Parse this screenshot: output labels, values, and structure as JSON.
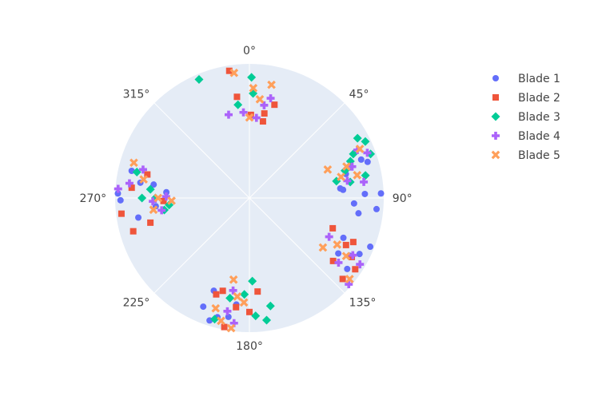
{
  "chart_data": {
    "type": "scatterpolar",
    "title": "",
    "angular_axis": {
      "direction": "clockwise",
      "rotation_deg": 90,
      "tick_labels": [
        "0°",
        "45°",
        "90°",
        "135°",
        "180°",
        "225°",
        "270°",
        "315°"
      ],
      "tick_values": [
        0,
        45,
        90,
        135,
        180,
        225,
        270,
        315
      ]
    },
    "radial_axis": {
      "range": [
        0,
        1
      ],
      "show_tick_labels": false
    },
    "grid": true,
    "legend_position": "top-right",
    "background_color": "#e5ecf6",
    "series": [
      {
        "name": "Blade 1",
        "symbol": "circle",
        "color": "#636efa",
        "points": [
          [
            0.88,
            71
          ],
          [
            0.92,
            73
          ],
          [
            0.74,
            76
          ],
          [
            0.7,
            85
          ],
          [
            0.86,
            88
          ],
          [
            0.98,
            88
          ],
          [
            0.78,
            93
          ],
          [
            0.95,
            95
          ],
          [
            0.82,
            98
          ],
          [
            0.68,
            84
          ],
          [
            0.78,
            73
          ],
          [
            0.92,
            117
          ],
          [
            0.97,
            112
          ],
          [
            0.78,
            122
          ],
          [
            0.9,
            126
          ],
          [
            0.76,
            113
          ],
          [
            0.86,
            120
          ],
          [
            0.92,
            195
          ],
          [
            0.9,
            190
          ],
          [
            0.74,
            201
          ],
          [
            0.8,
            187
          ],
          [
            0.96,
            198
          ],
          [
            0.88,
            203
          ],
          [
            0.96,
            269
          ],
          [
            0.98,
            272
          ],
          [
            0.72,
            278
          ],
          [
            0.82,
            278
          ],
          [
            0.62,
            274
          ],
          [
            0.7,
            265
          ],
          [
            0.9,
            283
          ],
          [
            0.84,
            260
          ]
        ]
      },
      {
        "name": "Blade 2",
        "symbol": "square",
        "color": "#ef553b",
        "points": [
          [
            0.96,
            351
          ],
          [
            0.64,
            10
          ],
          [
            0.76,
            353
          ],
          [
            0.72,
            15
          ],
          [
            0.62,
            1
          ],
          [
            0.58,
            10
          ],
          [
            0.84,
            113
          ],
          [
            0.88,
            120
          ],
          [
            0.78,
            127
          ],
          [
            0.92,
            131
          ],
          [
            0.8,
            116
          ],
          [
            0.66,
            110
          ],
          [
            0.95,
            124
          ],
          [
            0.76,
            199
          ],
          [
            0.82,
            187
          ],
          [
            0.98,
            191
          ],
          [
            0.72,
            196
          ],
          [
            0.7,
            175
          ],
          [
            0.85,
            180
          ],
          [
            0.9,
            254
          ],
          [
            0.76,
            256
          ],
          [
            0.96,
            263
          ],
          [
            0.88,
            275
          ],
          [
            0.78,
            283
          ],
          [
            0.64,
            268
          ]
        ]
      },
      {
        "name": "Blade 3",
        "symbol": "diamond",
        "color": "#00cc96",
        "points": [
          [
            0.92,
            61
          ],
          [
            0.84,
            67
          ],
          [
            0.96,
            70
          ],
          [
            0.74,
            74
          ],
          [
            0.66,
            79
          ],
          [
            0.76,
            81
          ],
          [
            0.88,
            79
          ],
          [
            0.96,
            64
          ],
          [
            0.8,
            70
          ],
          [
            0.88,
            177
          ],
          [
            0.72,
            183
          ],
          [
            0.94,
            196
          ],
          [
            0.82,
            169
          ],
          [
            0.62,
            178
          ],
          [
            0.76,
            191
          ],
          [
            0.92,
            172
          ],
          [
            0.64,
            262
          ],
          [
            0.8,
            270
          ],
          [
            0.74,
            275
          ],
          [
            0.86,
            283
          ],
          [
            0.7,
            270
          ],
          [
            0.6,
            265
          ],
          [
            0.9,
            1
          ],
          [
            0.7,
            353
          ],
          [
            0.78,
            2
          ],
          [
            0.96,
            337
          ]
        ]
      },
      {
        "name": "Blade 4",
        "symbol": "cross",
        "color": "#ab63fa",
        "points": [
          [
            0.88,
            66
          ],
          [
            0.94,
            69
          ],
          [
            0.8,
            73
          ],
          [
            0.74,
            80
          ],
          [
            0.86,
            82
          ],
          [
            0.96,
            121
          ],
          [
            0.88,
            119
          ],
          [
            0.82,
            126
          ],
          [
            0.98,
            131
          ],
          [
            0.66,
            116
          ],
          [
            0.86,
            191
          ],
          [
            0.94,
            187
          ],
          [
            0.7,
            190
          ],
          [
            0.62,
            271
          ],
          [
            0.82,
            285
          ],
          [
            0.9,
            277
          ],
          [
            0.72,
            268
          ],
          [
            0.98,
            274
          ],
          [
            0.66,
            262
          ],
          [
            0.7,
            9
          ],
          [
            0.64,
            346
          ],
          [
            0.64,
            356
          ],
          [
            0.6,
            5
          ],
          [
            0.76,
            12
          ]
        ]
      },
      {
        "name": "Blade 5",
        "symbol": "x",
        "color": "#ff9f5a",
        "points": [
          [
            0.62,
            70
          ],
          [
            0.76,
            72
          ],
          [
            0.9,
            66
          ],
          [
            0.82,
            78
          ],
          [
            0.7,
            77
          ],
          [
            0.84,
            121
          ],
          [
            0.66,
            124
          ],
          [
            0.96,
            129
          ],
          [
            0.74,
            118
          ],
          [
            0.94,
            193
          ],
          [
            0.86,
            197
          ],
          [
            0.98,
            188
          ],
          [
            0.78,
            183
          ],
          [
            0.62,
            191
          ],
          [
            0.74,
            187
          ],
          [
            0.68,
            270
          ],
          [
            0.8,
            280
          ],
          [
            0.72,
            263
          ],
          [
            0.9,
            287
          ],
          [
            0.58,
            268
          ],
          [
            0.74,
            6
          ],
          [
            0.82,
            2
          ],
          [
            0.94,
            353
          ],
          [
            0.86,
            11
          ],
          [
            0.6,
            0
          ]
        ]
      }
    ]
  }
}
